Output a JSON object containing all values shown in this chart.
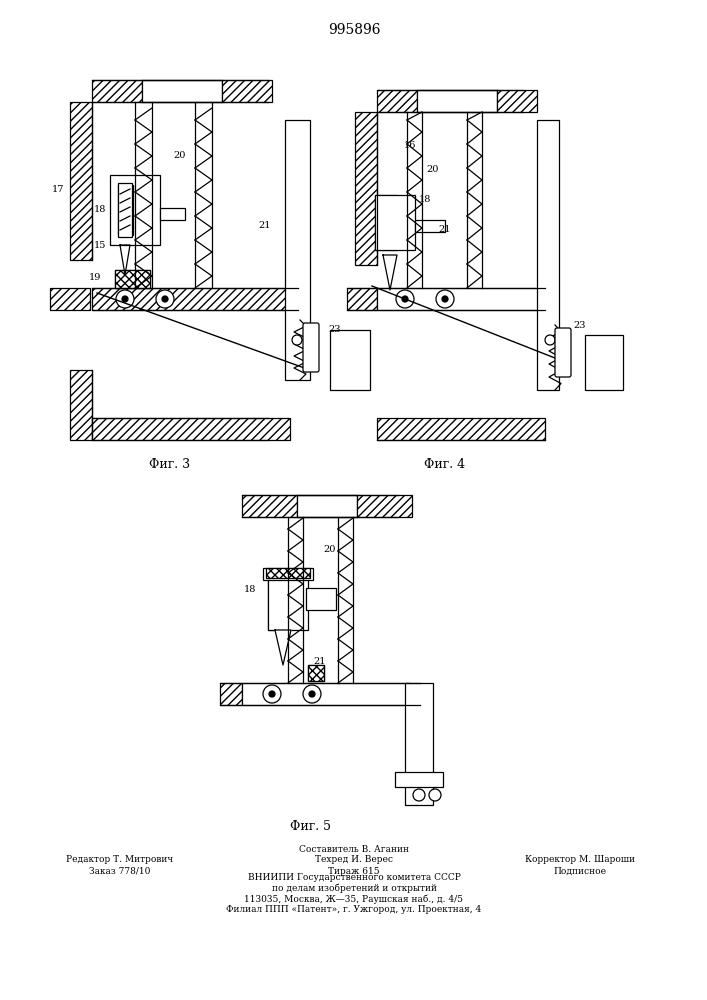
{
  "patent_number": "995896",
  "fig3_caption": "Φиг. 3",
  "fig4_caption": "Φиг. 4",
  "fig5_caption": "Φиг. 5",
  "bg_color": "#ffffff",
  "line_color": "#000000",
  "footer": {
    "left_col": [
      "Редактор Т. Митрович",
      "Заказ 778/10"
    ],
    "mid_col": [
      "Составитель В. Аганин",
      "Техред И. Верес",
      "Тираж 615"
    ],
    "right_col": [
      "Корректор М. Шароши",
      "Подписное"
    ],
    "center_lines": [
      "ВНИИПИ Государственного комитета СССР",
      "по делам изобретений и открытий",
      "113035, Москва, Ж—35, Раушская наб., д. 4/5",
      "Филиал ППП «Патент», г. Ужгород, ул. Проектная, 4"
    ]
  }
}
